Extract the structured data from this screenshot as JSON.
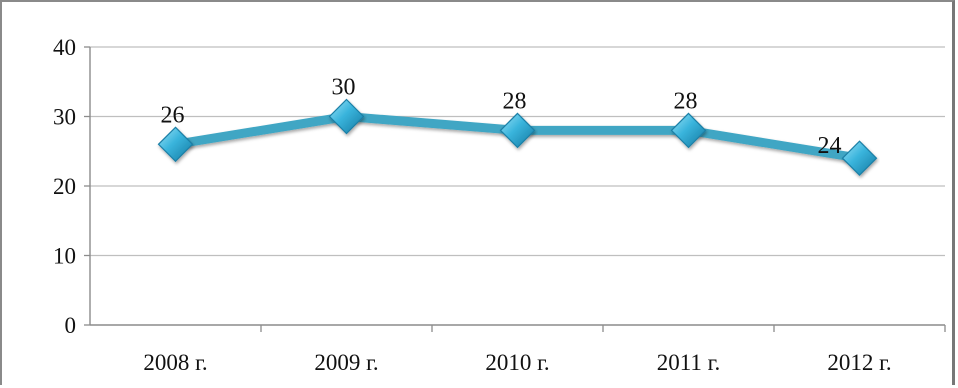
{
  "chart_data": {
    "type": "line",
    "title": "",
    "xlabel": "",
    "ylabel": "",
    "categories": [
      "2008 г.",
      "2009 г.",
      "2010 г.",
      "2011 г.",
      "2012 г."
    ],
    "series": [
      {
        "values": [
          26,
          30,
          28,
          28,
          24
        ],
        "data_labels": [
          "26",
          "30",
          "28",
          "28",
          "24"
        ],
        "color": "#3fa6c4",
        "marker": "diamond",
        "marker_color": "#2aa3cc"
      }
    ],
    "ylim": [
      0,
      40
    ],
    "yticks": [
      0,
      10,
      20,
      30,
      40
    ],
    "ytick_labels": [
      "0",
      "10",
      "20",
      "30",
      "40"
    ],
    "grid": true,
    "legend": "none",
    "gridline_color": "#bfbfbf",
    "axis_color": "#8c8c8c"
  }
}
